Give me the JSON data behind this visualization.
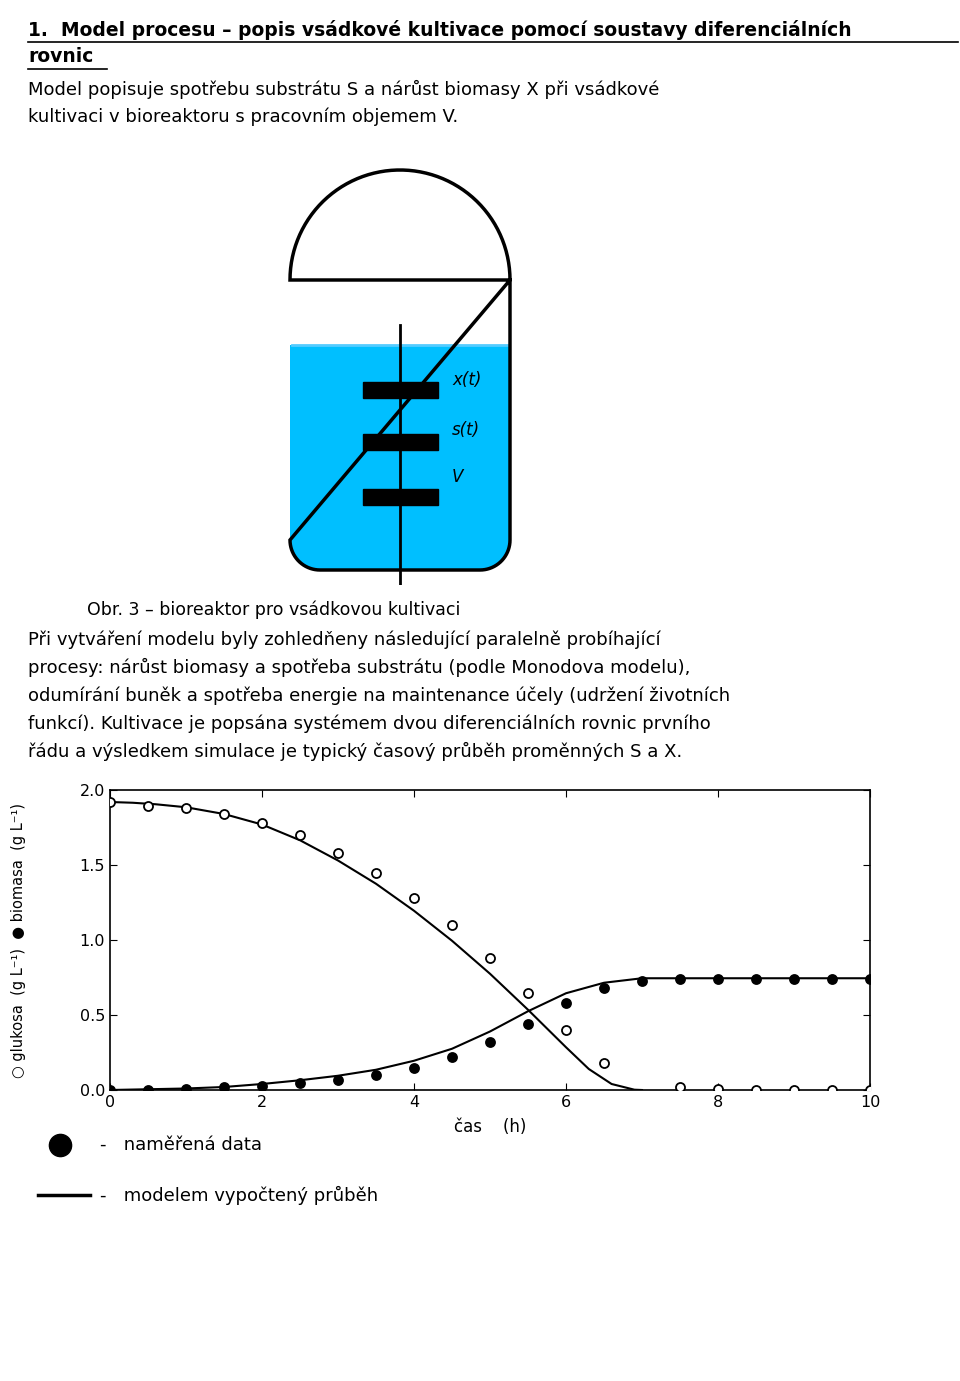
{
  "title_line1": "1.  Model procesu – popis vsádkové kultivace pomocí soustavy diferenciálních",
  "title_line2": "rovnic",
  "body_text1": "Model popisuje spotřebu substrátu S a nárůst biomasy X při vsádkové",
  "body_text2": "kultivaci v bioreaktoru s pracovním objemem V.",
  "caption": "    Obr. 3 – bioreaktor pro vsádkovou kultivaci",
  "body2_line1": "Při vytváření modelu byly zohledňeny následující paralelně probíhající",
  "body2_line2": "procesy: nárůst biomasy a spotřeba substrátu (podle Monodova modelu),",
  "body2_line3": "odumírání buněk a spotřeba energie na maintenance účely (udržení životních",
  "body2_line4": "funkcí). Kultivace je popsána systémem dvou diferenciálních rovnic prvního",
  "body2_line5": "řádu a výsledkem simulace je typický časový průběh proměnných S a X.",
  "legend_label1": "naměřená data",
  "legend_label2": "modelem vypočtený průběh",
  "xlabel": "čas    (h)",
  "xlim": [
    0,
    10
  ],
  "ylim": [
    0,
    2.0
  ],
  "xticks": [
    0,
    2,
    4,
    6,
    8,
    10
  ],
  "yticks": [
    0.0,
    0.5,
    1.0,
    1.5,
    2.0
  ],
  "reactor_fill": "#00BFFF",
  "reactor_bg": "#e0e0e0",
  "glucose_open_data": [
    [
      0.0,
      1.92
    ],
    [
      0.5,
      1.895
    ],
    [
      1.0,
      1.88
    ],
    [
      1.5,
      1.84
    ],
    [
      2.0,
      1.78
    ],
    [
      2.5,
      1.7
    ],
    [
      3.0,
      1.58
    ],
    [
      3.5,
      1.45
    ],
    [
      4.0,
      1.28
    ],
    [
      4.5,
      1.1
    ],
    [
      5.0,
      0.88
    ],
    [
      5.5,
      0.65
    ],
    [
      6.0,
      0.4
    ],
    [
      6.5,
      0.18
    ],
    [
      7.5,
      0.02
    ],
    [
      8.0,
      0.01
    ],
    [
      8.5,
      0.0
    ],
    [
      9.0,
      0.0
    ],
    [
      9.5,
      0.0
    ],
    [
      10.0,
      0.0
    ]
  ],
  "biomass_filled_data": [
    [
      0.0,
      0.0
    ],
    [
      0.5,
      0.0
    ],
    [
      1.0,
      0.01
    ],
    [
      1.5,
      0.02
    ],
    [
      2.0,
      0.03
    ],
    [
      2.5,
      0.05
    ],
    [
      3.0,
      0.07
    ],
    [
      3.5,
      0.1
    ],
    [
      4.0,
      0.15
    ],
    [
      4.5,
      0.22
    ],
    [
      5.0,
      0.32
    ],
    [
      5.5,
      0.44
    ],
    [
      6.0,
      0.58
    ],
    [
      6.5,
      0.68
    ],
    [
      7.0,
      0.73
    ],
    [
      7.5,
      0.74
    ],
    [
      8.0,
      0.74
    ],
    [
      8.5,
      0.74
    ],
    [
      9.0,
      0.74
    ],
    [
      9.5,
      0.74
    ],
    [
      10.0,
      0.74
    ]
  ],
  "glucose_model_x": [
    0.0,
    0.3,
    0.6,
    1.0,
    1.5,
    2.0,
    2.5,
    3.0,
    3.5,
    4.0,
    4.5,
    5.0,
    5.5,
    6.0,
    6.3,
    6.6,
    6.9,
    7.0
  ],
  "glucose_model_y": [
    1.92,
    1.915,
    1.905,
    1.885,
    1.84,
    1.77,
    1.665,
    1.53,
    1.375,
    1.195,
    0.995,
    0.775,
    0.535,
    0.285,
    0.14,
    0.04,
    0.002,
    0.0
  ],
  "biomass_model_x": [
    0.0,
    0.5,
    1.0,
    1.5,
    2.0,
    2.5,
    3.0,
    3.5,
    4.0,
    4.5,
    5.0,
    5.5,
    6.0,
    6.5,
    7.0,
    7.5,
    8.0,
    8.5,
    9.0,
    9.5,
    10.0
  ],
  "biomass_model_y": [
    0.0,
    0.005,
    0.01,
    0.02,
    0.04,
    0.065,
    0.095,
    0.135,
    0.195,
    0.275,
    0.39,
    0.525,
    0.645,
    0.715,
    0.745,
    0.745,
    0.745,
    0.745,
    0.745,
    0.745,
    0.745
  ]
}
